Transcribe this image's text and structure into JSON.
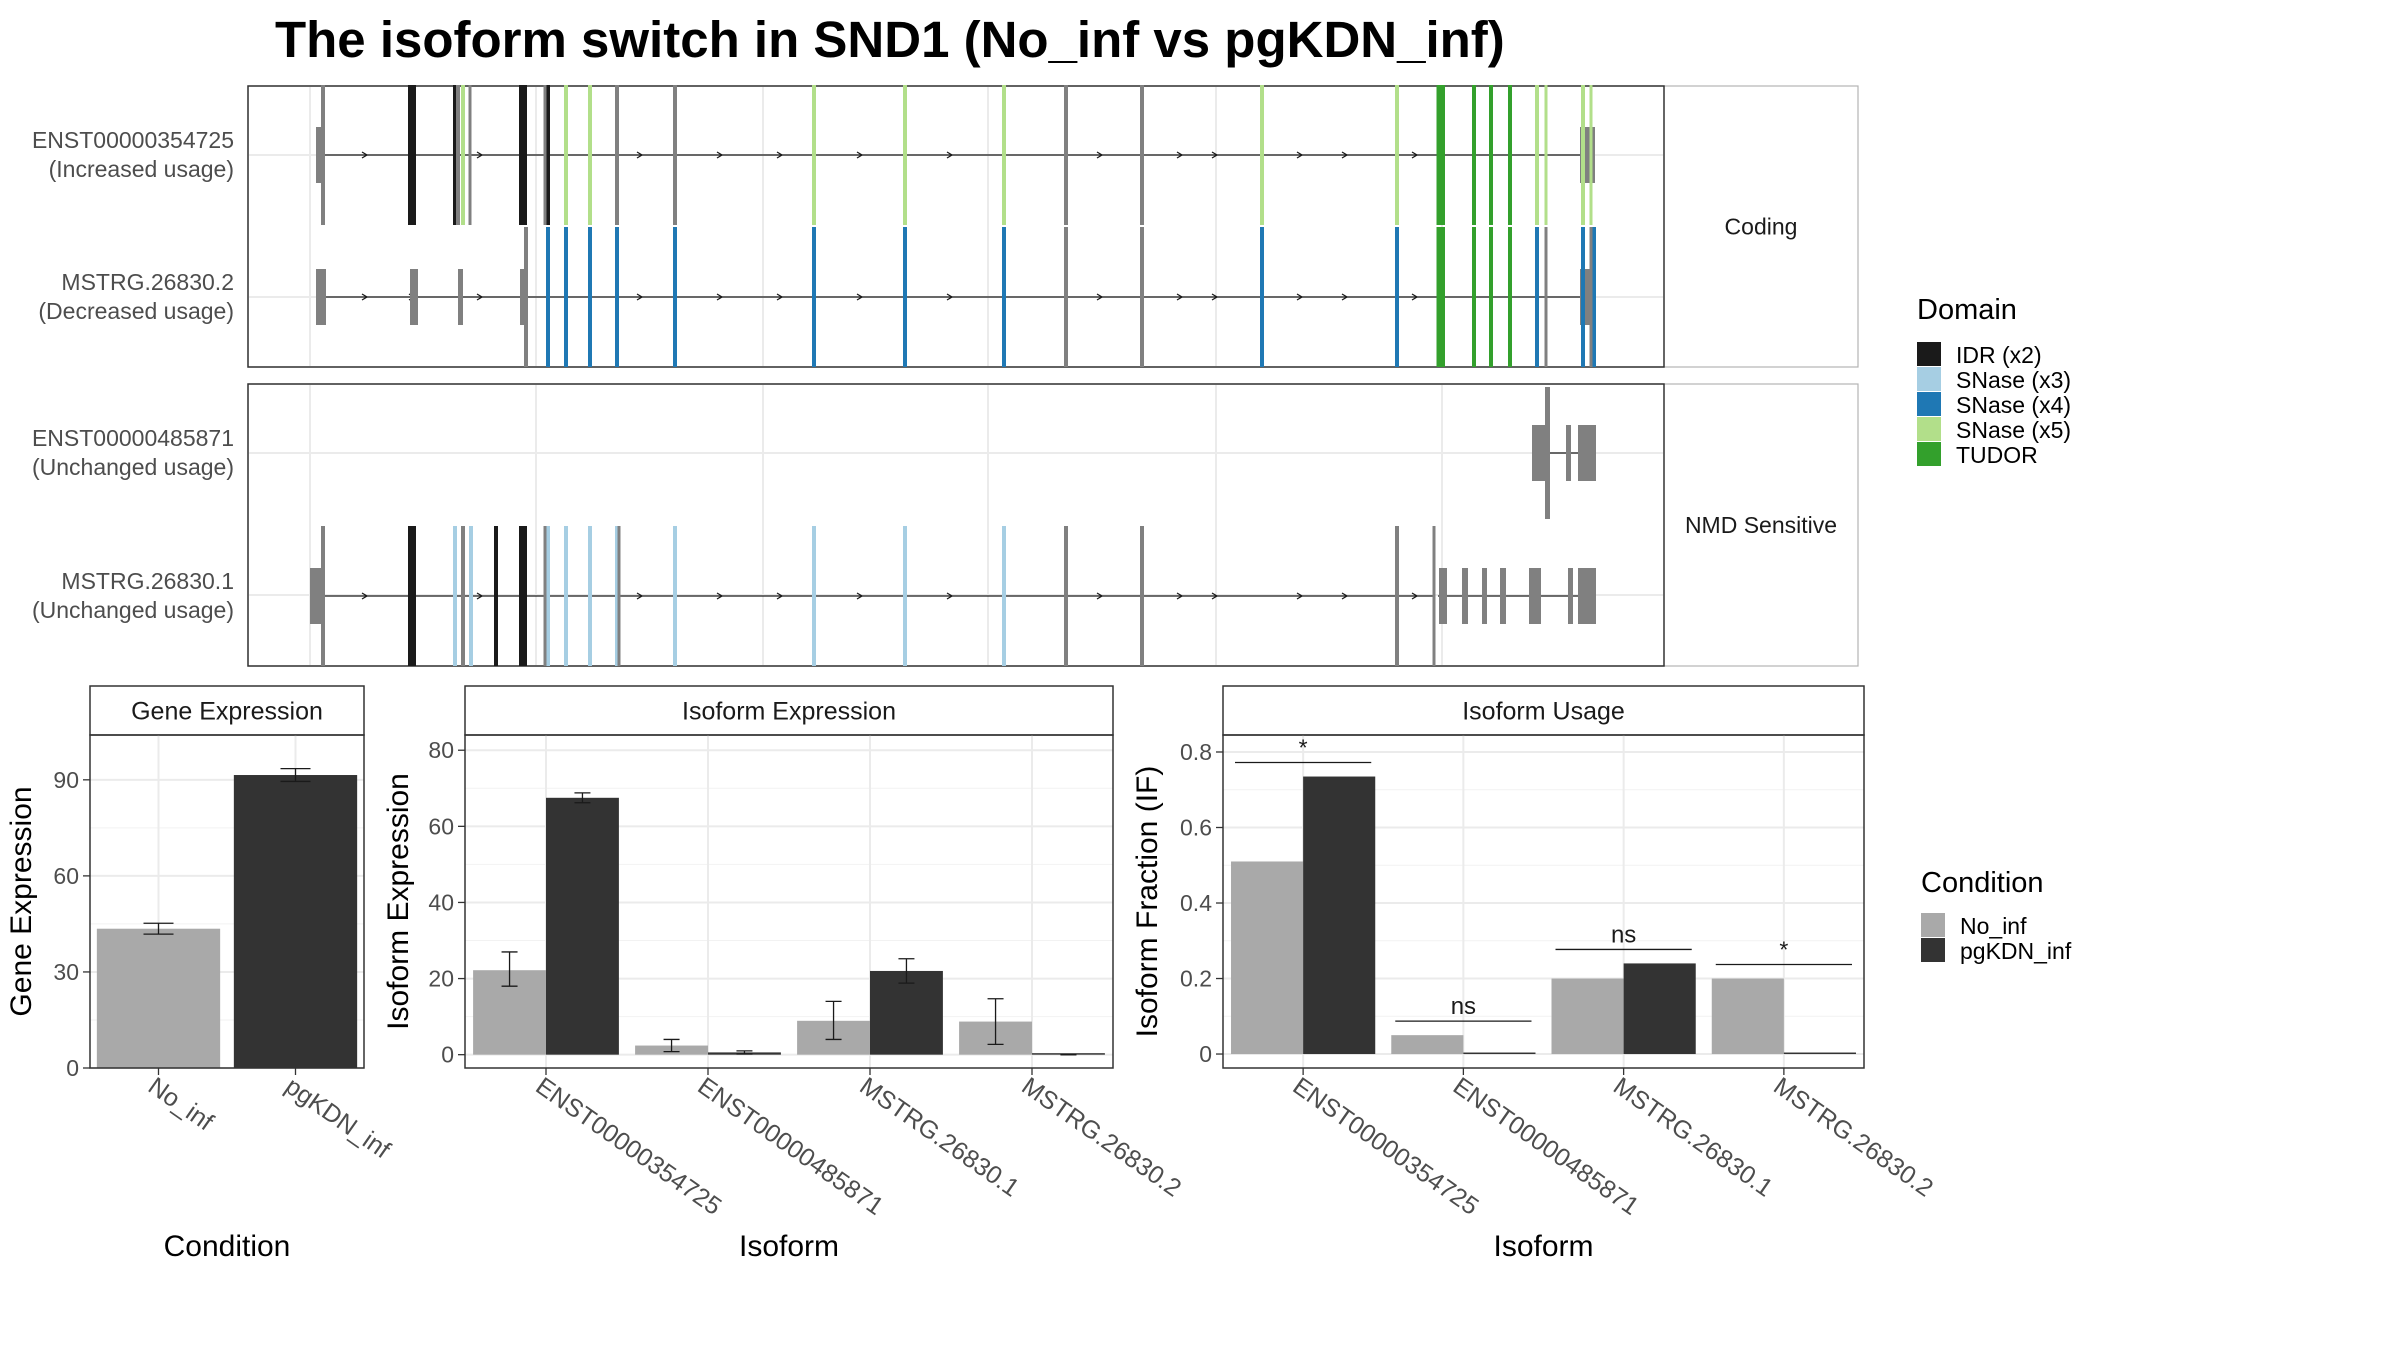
{
  "title": "The isoform switch in SND1 (No_inf vs pgKDN_inf)",
  "colors": {
    "exon": "#808080",
    "idr": "#1a1a1a",
    "snase3": "#a6cee3",
    "snase4": "#1f78b4",
    "snase5": "#b2df8a",
    "tudor": "#33a02c",
    "no_inf": "#a9a9a9",
    "pgkdn_inf": "#333333"
  },
  "structure": {
    "facets": [
      "Coding",
      "NMD Sensitive"
    ],
    "transcripts": [
      {
        "id": "ENST00000354725",
        "usage": "(Increased usage)",
        "facet": "Coding"
      },
      {
        "id": "MSTRG.26830.2",
        "usage": "(Decreased usage)",
        "facet": "Coding"
      },
      {
        "id": "ENST00000485871",
        "usage": "(Unchanged usage)",
        "facet": "NMD Sensitive"
      },
      {
        "id": "MSTRG.26830.1",
        "usage": "(Unchanged usage)",
        "facet": "NMD Sensitive"
      }
    ],
    "domain_legend": {
      "title": "Domain",
      "items": [
        {
          "label": "IDR (x2)",
          "color": "#1a1a1a"
        },
        {
          "label": "SNase (x3)",
          "color": "#a6cee3"
        },
        {
          "label": "SNase (x4)",
          "color": "#1f78b4"
        },
        {
          "label": "SNase (x5)",
          "color": "#b2df8a"
        },
        {
          "label": "TUDOR",
          "color": "#33a02c"
        }
      ]
    }
  },
  "condition_legend": {
    "title": "Condition",
    "items": [
      {
        "label": "No_inf",
        "color": "#a9a9a9"
      },
      {
        "label": "pgKDN_inf",
        "color": "#333333"
      }
    ]
  },
  "chart_data": [
    {
      "type": "bar",
      "title": "Gene Expression",
      "xlabel": "Condition",
      "ylabel": "Gene Expression",
      "categories": [
        "No_inf",
        "pgKDN_inf"
      ],
      "values": [
        43.5,
        91.5
      ],
      "errors": [
        [
          41.8,
          45.2
        ],
        [
          89.5,
          93.5
        ]
      ],
      "ylim": [
        0,
        104
      ],
      "yticks": [
        0,
        30,
        60,
        90
      ],
      "grid": true
    },
    {
      "type": "bar",
      "title": "Isoform Expression",
      "xlabel": "Isoform",
      "ylabel": "Isoform Expression",
      "categories": [
        "ENST00000354725",
        "ENST00000485871",
        "MSTRG.26830.1",
        "MSTRG.26830.2"
      ],
      "series": [
        {
          "name": "No_inf",
          "values": [
            22.2,
            2.4,
            8.9,
            8.7
          ],
          "errors": [
            [
              18,
              27
            ],
            [
              0.8,
              4.0
            ],
            [
              4,
              14
            ],
            [
              2.7,
              14.7
            ]
          ]
        },
        {
          "name": "pgKDN_inf",
          "values": [
            67.5,
            0.6,
            22.0,
            0.0
          ],
          "errors": [
            [
              66.2,
              68.8
            ],
            [
              0.2,
              1.0
            ],
            [
              18.8,
              25.2
            ],
            [
              0,
              0
            ]
          ]
        }
      ],
      "ylim": [
        -3.5,
        84
      ],
      "yticks": [
        0,
        20,
        40,
        60,
        80
      ],
      "grid": true
    },
    {
      "type": "bar",
      "title": "Isoform Usage",
      "xlabel": "Isoform",
      "ylabel": "Isoform Fraction (IF)",
      "categories": [
        "ENST00000354725",
        "ENST00000485871",
        "MSTRG.26830.1",
        "MSTRG.26830.2"
      ],
      "series": [
        {
          "name": "No_inf",
          "values": [
            0.51,
            0.05,
            0.2,
            0.2
          ]
        },
        {
          "name": "pgKDN_inf",
          "values": [
            0.735,
            0.0,
            0.24,
            0.0
          ]
        }
      ],
      "significance": [
        "*",
        "ns",
        "ns",
        "*"
      ],
      "ylim": [
        -0.037,
        0.845
      ],
      "yticks": [
        0.0,
        0.2,
        0.4,
        0.6,
        0.8
      ],
      "grid": true
    }
  ]
}
